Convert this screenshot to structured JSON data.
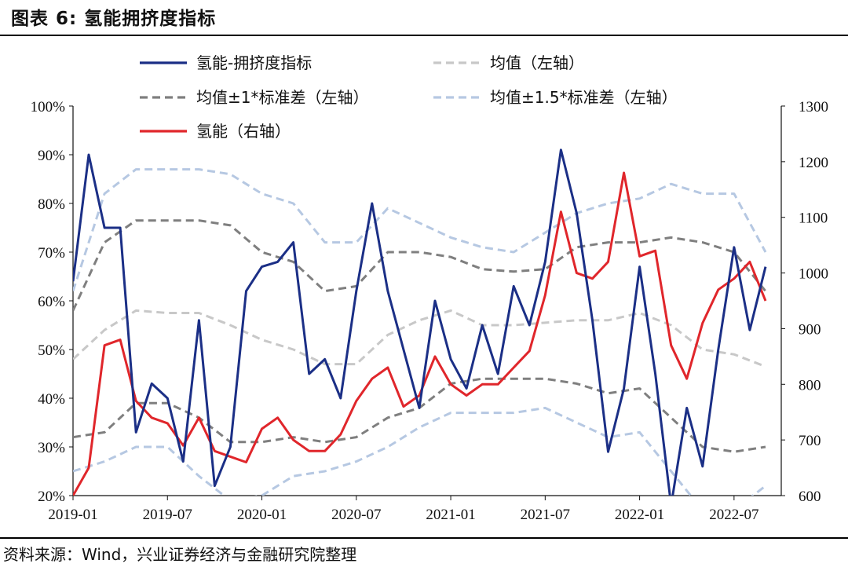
{
  "figure": {
    "title": "图表 6:  氢能拥挤度指标",
    "source": "资料来源：Wind，兴业证券经济与金融研究院整理"
  },
  "colors": {
    "crowding": "#1b2f86",
    "mean": "#c8c8c8",
    "band1": "#7f7f7f",
    "band15": "#b6c8e2",
    "hydrogen": "#e0262b"
  },
  "chart_data": {
    "type": "line",
    "title": "",
    "x_tick_labels": [
      "2019-01",
      "2019-07",
      "2020-01",
      "2020-07",
      "2021-01",
      "2021-07",
      "2022-01",
      "2022-07"
    ],
    "x_range": [
      "2019-01",
      "2022-10"
    ],
    "y_left": {
      "range": [
        0.2,
        1.0
      ],
      "ticks": [
        "20%",
        "30%",
        "40%",
        "50%",
        "60%",
        "70%",
        "80%",
        "90%",
        "100%"
      ]
    },
    "y_right": {
      "range": [
        600,
        1300
      ],
      "ticks": [
        "600",
        "700",
        "800",
        "900",
        "1000",
        "1100",
        "1200",
        "1300"
      ]
    },
    "grid": false,
    "legend_position": "top",
    "series": [
      {
        "name": "氢能-拥挤度指标",
        "axis": "left",
        "style": "solid",
        "x": [
          "2019-01",
          "2019-02",
          "2019-03",
          "2019-04",
          "2019-05",
          "2019-06",
          "2019-07",
          "2019-08",
          "2019-09",
          "2019-10",
          "2019-11",
          "2019-12",
          "2020-01",
          "2020-02",
          "2020-03",
          "2020-04",
          "2020-05",
          "2020-06",
          "2020-07",
          "2020-08",
          "2020-09",
          "2020-10",
          "2020-11",
          "2020-12",
          "2021-01",
          "2021-02",
          "2021-03",
          "2021-04",
          "2021-05",
          "2021-06",
          "2021-07",
          "2021-08",
          "2021-09",
          "2021-10",
          "2021-11",
          "2021-12",
          "2022-01",
          "2022-02",
          "2022-03",
          "2022-04",
          "2022-05",
          "2022-06",
          "2022-07",
          "2022-08",
          "2022-09"
        ],
        "y": [
          0.64,
          0.9,
          0.75,
          0.75,
          0.33,
          0.43,
          0.4,
          0.27,
          0.56,
          0.22,
          0.3,
          0.62,
          0.67,
          0.68,
          0.72,
          0.45,
          0.48,
          0.4,
          0.62,
          0.8,
          0.62,
          0.5,
          0.38,
          0.6,
          0.48,
          0.42,
          0.55,
          0.45,
          0.63,
          0.55,
          0.68,
          0.91,
          0.78,
          0.56,
          0.29,
          0.42,
          0.67,
          0.45,
          0.18,
          0.38,
          0.26,
          0.5,
          0.71,
          0.54,
          0.67
        ]
      },
      {
        "name": "均值（左轴）",
        "axis": "left",
        "style": "dashed",
        "x": [
          "2019-01",
          "2019-03",
          "2019-05",
          "2019-07",
          "2019-09",
          "2019-11",
          "2020-01",
          "2020-03",
          "2020-05",
          "2020-07",
          "2020-09",
          "2020-11",
          "2021-01",
          "2021-03",
          "2021-05",
          "2021-07",
          "2021-09",
          "2021-11",
          "2022-01",
          "2022-03",
          "2022-05",
          "2022-07",
          "2022-09"
        ],
        "y": [
          0.48,
          0.54,
          0.58,
          0.575,
          0.575,
          0.55,
          0.52,
          0.5,
          0.47,
          0.47,
          0.53,
          0.56,
          0.58,
          0.55,
          0.55,
          0.555,
          0.56,
          0.56,
          0.575,
          0.55,
          0.5,
          0.49,
          0.465
        ]
      },
      {
        "name": "均值±1*标准差（左轴）",
        "axis": "left",
        "style": "dashed",
        "x": [
          "2019-01",
          "2019-03",
          "2019-05",
          "2019-07",
          "2019-09",
          "2019-11",
          "2020-01",
          "2020-03",
          "2020-05",
          "2020-07",
          "2020-09",
          "2020-11",
          "2021-01",
          "2021-03",
          "2021-05",
          "2021-07",
          "2021-09",
          "2021-11",
          "2022-01",
          "2022-03",
          "2022-05",
          "2022-07",
          "2022-09"
        ],
        "y": [
          0.58,
          0.72,
          0.765,
          0.765,
          0.765,
          0.755,
          0.7,
          0.68,
          0.62,
          0.63,
          0.7,
          0.7,
          0.69,
          0.665,
          0.66,
          0.665,
          0.71,
          0.72,
          0.72,
          0.73,
          0.72,
          0.7,
          0.62
        ],
        "y_lower": [
          0.32,
          0.33,
          0.39,
          0.39,
          0.36,
          0.31,
          0.31,
          0.32,
          0.31,
          0.32,
          0.36,
          0.38,
          0.43,
          0.44,
          0.44,
          0.44,
          0.43,
          0.41,
          0.42,
          0.36,
          0.3,
          0.29,
          0.3
        ]
      },
      {
        "name": "均值±1.5*标准差（左轴）",
        "axis": "left",
        "style": "dashed",
        "x": [
          "2019-01",
          "2019-03",
          "2019-05",
          "2019-07",
          "2019-09",
          "2019-11",
          "2020-01",
          "2020-03",
          "2020-05",
          "2020-07",
          "2020-09",
          "2020-11",
          "2021-01",
          "2021-03",
          "2021-05",
          "2021-07",
          "2021-09",
          "2021-11",
          "2022-01",
          "2022-03",
          "2022-05",
          "2022-07",
          "2022-09"
        ],
        "y": [
          0.62,
          0.82,
          0.87,
          0.87,
          0.87,
          0.86,
          0.82,
          0.8,
          0.72,
          0.72,
          0.79,
          0.76,
          0.73,
          0.71,
          0.7,
          0.74,
          0.78,
          0.8,
          0.81,
          0.84,
          0.82,
          0.82,
          0.7
        ],
        "y_lower": [
          0.25,
          0.27,
          0.3,
          0.3,
          0.24,
          0.19,
          0.2,
          0.24,
          0.25,
          0.27,
          0.3,
          0.34,
          0.37,
          0.37,
          0.37,
          0.38,
          0.35,
          0.32,
          0.33,
          0.25,
          0.17,
          0.17,
          0.22
        ]
      },
      {
        "name": "氢能（右轴）",
        "axis": "right",
        "style": "solid",
        "x": [
          "2019-01",
          "2019-02",
          "2019-03",
          "2019-04",
          "2019-05",
          "2019-06",
          "2019-07",
          "2019-08",
          "2019-09",
          "2019-10",
          "2019-11",
          "2019-12",
          "2020-01",
          "2020-02",
          "2020-03",
          "2020-04",
          "2020-05",
          "2020-06",
          "2020-07",
          "2020-08",
          "2020-09",
          "2020-10",
          "2020-11",
          "2020-12",
          "2021-01",
          "2021-02",
          "2021-03",
          "2021-04",
          "2021-05",
          "2021-06",
          "2021-07",
          "2021-08",
          "2021-09",
          "2021-10",
          "2021-11",
          "2021-12",
          "2022-01",
          "2022-02",
          "2022-03",
          "2022-04",
          "2022-05",
          "2022-06",
          "2022-07",
          "2022-08",
          "2022-09"
        ],
        "y": [
          600,
          650,
          870,
          880,
          770,
          740,
          730,
          690,
          740,
          680,
          670,
          660,
          720,
          740,
          700,
          680,
          680,
          710,
          770,
          810,
          830,
          760,
          780,
          850,
          800,
          780,
          800,
          800,
          830,
          860,
          960,
          1110,
          1000,
          990,
          1020,
          1180,
          1030,
          1040,
          870,
          810,
          910,
          970,
          990,
          1020,
          950
        ]
      }
    ]
  }
}
